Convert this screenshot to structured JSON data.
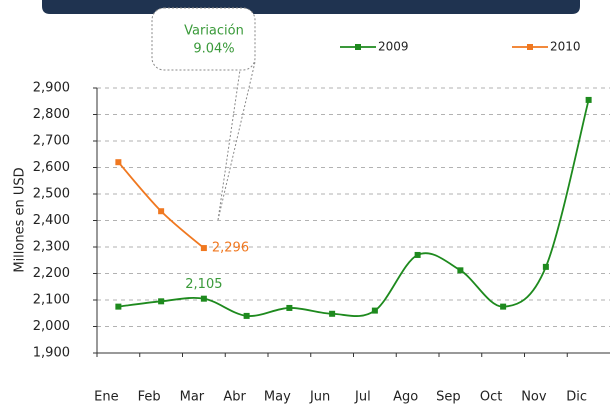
{
  "chart_data": {
    "type": "line",
    "y_label": "Millones en USD",
    "callout": {
      "title": "Variación",
      "value": "9.04%"
    },
    "categories": [
      "Ene",
      "Feb",
      "Mar",
      "Abr",
      "May",
      "Jun",
      "Jul",
      "Ago",
      "Sep",
      "Oct",
      "Nov",
      "Dic"
    ],
    "series": [
      {
        "name": "2009",
        "color": "#1e8a1e",
        "values": [
          2075,
          2095,
          2105,
          2040,
          2070,
          2048,
          2060,
          2270,
          2212,
          2075,
          2225,
          2855
        ],
        "value_labels": [
          null,
          null,
          "2,105",
          null,
          null,
          null,
          null,
          null,
          null,
          null,
          null,
          null
        ]
      },
      {
        "name": "2010",
        "color": "#f07820",
        "values": [
          2620,
          2435,
          2296,
          null,
          null,
          null,
          null,
          null,
          null,
          null,
          null,
          null
        ],
        "value_labels": [
          null,
          null,
          "2,296",
          null,
          null,
          null,
          null,
          null,
          null,
          null,
          null,
          null
        ]
      }
    ],
    "ylim": [
      1900,
      2900
    ],
    "yticks": [
      {
        "value": 1900,
        "label": "1,900"
      },
      {
        "value": 2000,
        "label": "2,000"
      },
      {
        "value": 2100,
        "label": "2,100"
      },
      {
        "value": 2200,
        "label": "2,200"
      },
      {
        "value": 2300,
        "label": "2,300"
      },
      {
        "value": 2400,
        "label": "2,400"
      },
      {
        "value": 2500,
        "label": "2,500"
      },
      {
        "value": 2600,
        "label": "2,600"
      },
      {
        "value": 2700,
        "label": "2,700"
      },
      {
        "value": 2800,
        "label": "2,800"
      },
      {
        "value": 2900,
        "label": "2,900"
      }
    ],
    "grid": true
  }
}
